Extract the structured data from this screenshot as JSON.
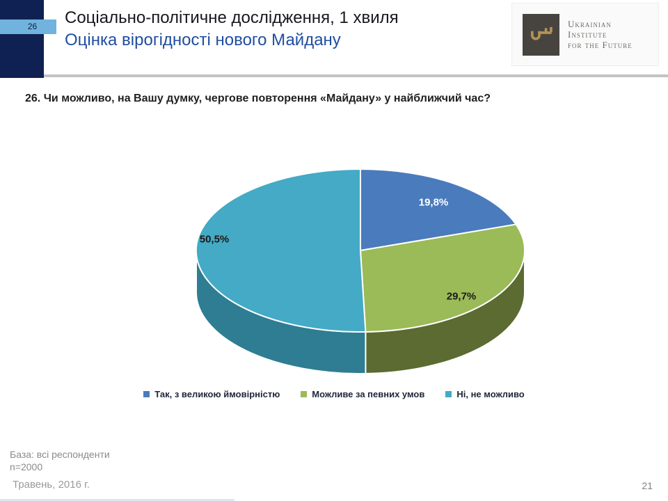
{
  "slide": {
    "number_tab": "26",
    "page_number": "21",
    "header": {
      "title": "Соціально-політичне дослідження, 1 хвиля",
      "subtitle": "Оцінка вірогідності нового Майдану"
    },
    "logo": {
      "line1": "Ukrainian",
      "line2": "Institute",
      "line3": "for the Future",
      "icon": "key-icon",
      "square_color": "#474440",
      "key_color": "#b49355"
    },
    "question": "26. Чи можливо, на Вашу думку, чергове повторення «Майдану» у найближчий час?",
    "footer": {
      "base_line1": "База: всі респонденти",
      "base_line2": "n=2000",
      "date": "Травень, 2016 г."
    },
    "colors": {
      "navy_block": "#0f2152",
      "tab_blue": "#6fb3de",
      "subtitle_blue": "#1f4ea0",
      "divider_gray": "#c3c3c3"
    }
  },
  "chart_data": {
    "type": "pie",
    "style": "3d",
    "title": "",
    "start_angle_deg": 0,
    "direction": "clockwise",
    "legend_position": "bottom",
    "slices": [
      {
        "label": "Так, з великою ймовірністю",
        "value": 19.8,
        "display": "19,8%",
        "color": "#4a7bbd",
        "side_color": "#3a629b",
        "label_color": "#ffffff"
      },
      {
        "label": "Можливе за певних умов",
        "value": 29.7,
        "display": "29,7%",
        "color": "#9bba58",
        "side_color": "#5b6b31",
        "label_color": "#1a1a1a"
      },
      {
        "label": "Ні, не можливо",
        "value": 50.5,
        "display": "50,5%",
        "color": "#44aac5",
        "side_color": "#2e7d93",
        "label_color": "#1a1a1a"
      }
    ]
  }
}
